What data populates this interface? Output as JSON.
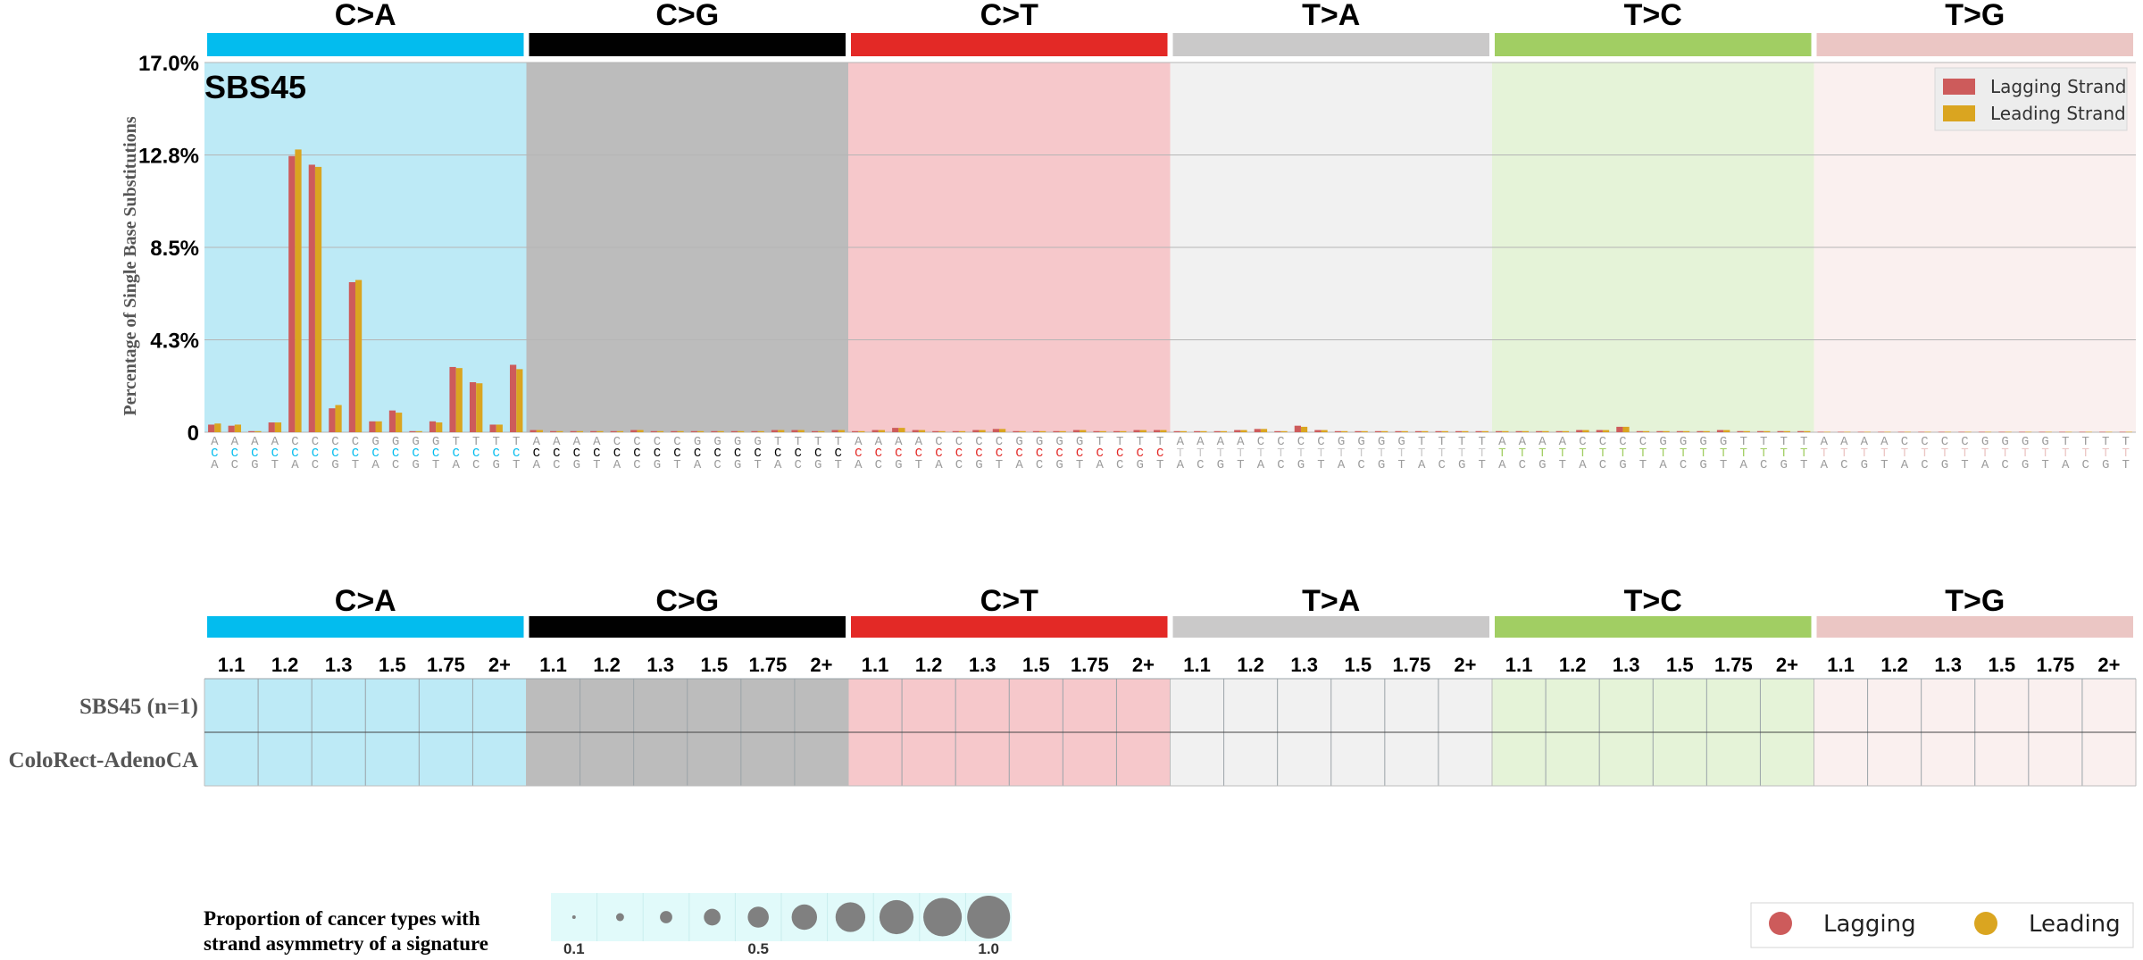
{
  "chart_data": [
    {
      "type": "bar",
      "title": "SBS45",
      "ylabel": "Percentage of Single Base Substitutions",
      "ylim": [
        0,
        17.0
      ],
      "yticks": [
        "0",
        "4.3%",
        "8.5%",
        "12.8%",
        "17.0%"
      ],
      "ytick_values": [
        0,
        4.25,
        8.5,
        12.75,
        17.0
      ],
      "grid": true,
      "legend_position": "top-right",
      "mutation_types": [
        "C>A",
        "C>G",
        "C>T",
        "T>A",
        "T>C",
        "T>G"
      ],
      "contexts": [
        "ACA",
        "ACC",
        "ACG",
        "ACT",
        "CCA",
        "CCC",
        "CCG",
        "CCT",
        "GCA",
        "GCC",
        "GCG",
        "GCT",
        "TCA",
        "TCC",
        "TCG",
        "TCT"
      ],
      "contexts_t": [
        "ATA",
        "ATC",
        "ATG",
        "ATT",
        "CTA",
        "CTC",
        "CTG",
        "CTT",
        "GTA",
        "GTC",
        "GTG",
        "GTT",
        "TTA",
        "TTC",
        "TTG",
        "TTT"
      ],
      "series": [
        {
          "name": "Lagging Strand",
          "values": [
            0.35,
            0.3,
            0.05,
            0.45,
            12.7,
            12.3,
            1.1,
            6.9,
            0.5,
            1.0,
            0.05,
            0.5,
            3.0,
            2.3,
            0.35,
            3.1,
            0.1,
            0.05,
            0.05,
            0.05,
            0.05,
            0.1,
            0.05,
            0.05,
            0.05,
            0.05,
            0.05,
            0.05,
            0.1,
            0.1,
            0.05,
            0.1,
            0.05,
            0.1,
            0.2,
            0.1,
            0.05,
            0.05,
            0.1,
            0.15,
            0.05,
            0.05,
            0.05,
            0.1,
            0.05,
            0.05,
            0.1,
            0.1,
            0.05,
            0.05,
            0.05,
            0.1,
            0.15,
            0.05,
            0.3,
            0.1,
            0.05,
            0.05,
            0.05,
            0.05,
            0.05,
            0.05,
            0.05,
            0.05,
            0.05,
            0.05,
            0.05,
            0.05,
            0.1,
            0.1,
            0.25,
            0.05,
            0.05,
            0.05,
            0.05,
            0.1,
            0.05,
            0.05,
            0.05,
            0.05,
            0.02,
            0.02,
            0.02,
            0.02,
            0.02,
            0.02,
            0.02,
            0.02,
            0.02,
            0.02,
            0.02,
            0.02,
            0.02,
            0.02,
            0.02,
            0.02
          ]
        },
        {
          "name": "Leading Strand",
          "values": [
            0.4,
            0.35,
            0.05,
            0.45,
            13.0,
            12.2,
            1.25,
            7.0,
            0.5,
            0.9,
            0.05,
            0.45,
            2.95,
            2.25,
            0.35,
            2.9,
            0.1,
            0.05,
            0.05,
            0.05,
            0.05,
            0.1,
            0.05,
            0.05,
            0.05,
            0.05,
            0.05,
            0.05,
            0.1,
            0.1,
            0.05,
            0.1,
            0.05,
            0.1,
            0.2,
            0.1,
            0.05,
            0.05,
            0.1,
            0.15,
            0.05,
            0.05,
            0.05,
            0.1,
            0.05,
            0.05,
            0.1,
            0.1,
            0.05,
            0.05,
            0.05,
            0.1,
            0.15,
            0.05,
            0.25,
            0.1,
            0.05,
            0.05,
            0.05,
            0.05,
            0.05,
            0.05,
            0.05,
            0.05,
            0.05,
            0.05,
            0.05,
            0.05,
            0.1,
            0.1,
            0.25,
            0.05,
            0.05,
            0.05,
            0.05,
            0.1,
            0.05,
            0.05,
            0.05,
            0.05,
            0.02,
            0.02,
            0.02,
            0.02,
            0.02,
            0.02,
            0.02,
            0.02,
            0.02,
            0.02,
            0.02,
            0.02,
            0.02,
            0.02,
            0.02,
            0.02
          ]
        }
      ]
    },
    {
      "type": "table",
      "mutation_types": [
        "C>A",
        "C>G",
        "C>T",
        "T>A",
        "T>C",
        "T>G"
      ],
      "columns": [
        "1.1",
        "1.2",
        "1.3",
        "1.5",
        "1.75",
        "2+"
      ],
      "rows": [
        "SBS45 (n=1)",
        "ColoRect-AdenoCA"
      ],
      "legend_title": [
        "Proportion of cancer types with",
        "strand asymmetry of a signature"
      ],
      "size_legend_ticks": [
        "0.1",
        "0.5",
        "1.0"
      ],
      "size_legend_values": [
        0.1,
        0.2,
        0.3,
        0.4,
        0.5,
        0.6,
        0.7,
        0.8,
        0.9,
        1.0
      ],
      "color_legend": [
        "Lagging",
        "Leading"
      ]
    }
  ],
  "colors": {
    "type_colors": [
      "#03bcee",
      "#010101",
      "#e32926",
      "#cac9c9",
      "#a1ce63",
      "#ebc6c4"
    ],
    "type_bg": [
      "#bdeaf6",
      "#bcbcbc",
      "#f6c8cb",
      "#f1f1f1",
      "#e5f3d8",
      "#faf0ef"
    ],
    "lagging": "#cd5b5b",
    "leading": "#daa520",
    "bubble": "#808080"
  }
}
